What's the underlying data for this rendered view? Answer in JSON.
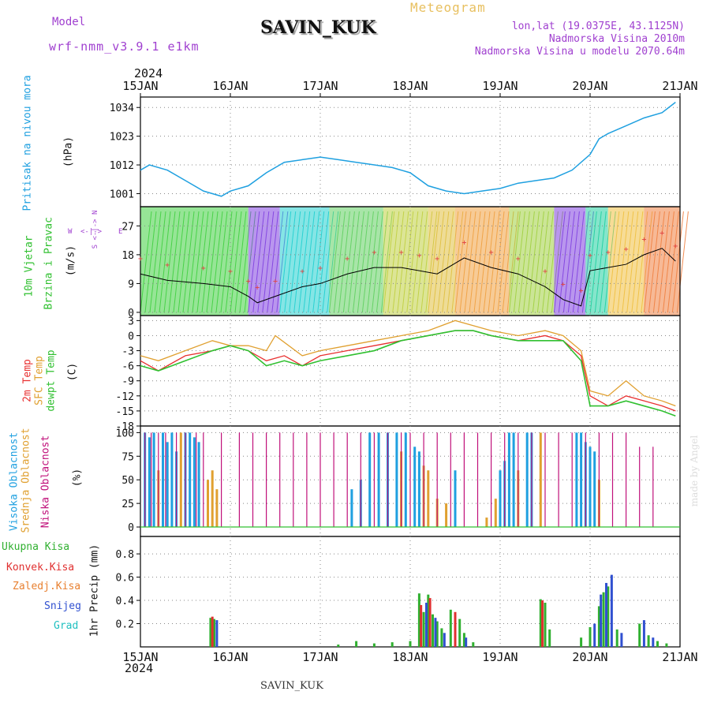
{
  "header": {
    "model_label": "Model",
    "model_name": "wrf-nmm_v3.9.1 e1km",
    "station": "SAVIN_KUK",
    "product": "Meteogram",
    "lonlat": "lon,lat (19.0375E, 43.1125N)",
    "elevation": "Nadmorska Visina 2010m",
    "model_elevation": "Nadmorska Visina u modelu 2070.64m",
    "year": "2024",
    "footer_station": "SAVIN_KUK",
    "credit": "made by Angel"
  },
  "colors": {
    "pressure": "#1fa0e0",
    "temp2m": "#e83030",
    "sfc": "#e0a030",
    "dewpt": "#30c030",
    "high": "#1fa0e0",
    "mid": "#e0a030",
    "low": "#c0107a",
    "total": "#30b030",
    "conv": "#e03030",
    "snow": "#3050d0",
    "grad": "#20c0c0",
    "model": "#a040d0"
  },
  "axis": {
    "dates": [
      "15JAN",
      "16JAN",
      "17JAN",
      "18JAN",
      "19JAN",
      "20JAN",
      "21JAN"
    ]
  },
  "panels": {
    "pressure": {
      "title": "Pritisak na nivou mora",
      "unit": "(hPa)",
      "ticks": [
        "1001",
        "1012",
        "1023",
        "1034"
      ]
    },
    "wind": {
      "title1": "10m Vjetar",
      "title2": "Brzina i Pravac",
      "unit": "(m/s)",
      "ticks": [
        "0",
        "9",
        "18",
        "27"
      ],
      "compass_w": "W",
      "compass_e": "E",
      "compass_arrow": "<-|->",
      "compass_vert": "S <-|-> N"
    },
    "temp": {
      "title1": "2m Temp",
      "title2": "SFC Temp",
      "title3": "dewpt Temp",
      "unit": "(C)",
      "ticks": [
        "-18",
        "-15",
        "-12",
        "-9",
        "-6",
        "-3",
        "0",
        "3"
      ]
    },
    "cloud": {
      "title1": "Visoka Oblacnost",
      "title2": "Srednja Oblacnost",
      "title3": "Niska Oblacnost",
      "unit": "(%)",
      "ticks": [
        "0",
        "25",
        "50",
        "75",
        "100"
      ]
    },
    "precip": {
      "legend": [
        "Ukupna Kisa",
        "Konvek.Kisa",
        "Zaledj.Kisa",
        "Snijeg",
        "Grad"
      ],
      "unit": "1hr Precip (mm)",
      "ticks": [
        "0.2",
        "0.4",
        "0.6",
        "0.8"
      ]
    }
  },
  "chart_data": [
    {
      "type": "line",
      "name": "pressure",
      "x_unit": "day from 15JAN 00UTC",
      "ylim": [
        996,
        1038
      ],
      "series": [
        {
          "name": "Pritisak na nivou mora",
          "x": [
            0,
            0.1,
            0.3,
            0.5,
            0.7,
            0.9,
            1.0,
            1.2,
            1.4,
            1.6,
            1.8,
            2.0,
            2.2,
            2.4,
            2.6,
            2.8,
            3.0,
            3.2,
            3.4,
            3.6,
            3.8,
            4.0,
            4.2,
            4.4,
            4.6,
            4.8,
            5.0,
            5.1,
            5.2,
            5.4,
            5.6,
            5.8,
            5.95
          ],
          "values": [
            1010,
            1012,
            1010,
            1006,
            1002,
            1000,
            1002,
            1004,
            1009,
            1013,
            1014,
            1015,
            1014,
            1013,
            1012,
            1011,
            1009,
            1004,
            1002,
            1001,
            1002,
            1003,
            1005,
            1006,
            1007,
            1010,
            1016,
            1022,
            1024,
            1027,
            1030,
            1032,
            1036
          ]
        }
      ]
    },
    {
      "type": "line",
      "name": "wind",
      "x_unit": "day from 15JAN 00UTC",
      "ylim": [
        -1,
        33
      ],
      "series": [
        {
          "name": "wind speed",
          "x": [
            0,
            0.3,
            0.7,
            1.0,
            1.2,
            1.3,
            1.5,
            1.8,
            2.0,
            2.3,
            2.6,
            2.9,
            3.1,
            3.3,
            3.6,
            3.9,
            4.2,
            4.5,
            4.7,
            4.9,
            5.0,
            5.2,
            5.4,
            5.6,
            5.8,
            5.95
          ],
          "values": [
            12,
            10,
            9,
            8,
            5,
            3,
            5,
            8,
            9,
            12,
            14,
            14,
            13,
            12,
            17,
            14,
            12,
            8,
            4,
            2,
            13,
            14,
            15,
            18,
            20,
            16
          ]
        }
      ]
    },
    {
      "type": "line",
      "name": "temperature",
      "x_unit": "day from 15JAN 00UTC",
      "ylim": [
        -18,
        4
      ],
      "series": [
        {
          "name": "2m Temp",
          "x": [
            0,
            0.2,
            0.5,
            0.8,
            1.0,
            1.2,
            1.4,
            1.6,
            1.8,
            2.0,
            2.3,
            2.6,
            2.9,
            3.2,
            3.5,
            3.7,
            3.9,
            4.2,
            4.5,
            4.7,
            4.9,
            5.0,
            5.2,
            5.4,
            5.6,
            5.8,
            5.95
          ],
          "values": [
            -5,
            -7,
            -4,
            -3,
            -2,
            -3,
            -5,
            -4,
            -6,
            -4,
            -3,
            -2,
            -1,
            0,
            1,
            1,
            0,
            -1,
            0,
            -1,
            -4,
            -12,
            -14,
            -12,
            -13,
            -14,
            -15
          ]
        },
        {
          "name": "SFC Temp",
          "x": [
            0,
            0.2,
            0.5,
            0.8,
            1.0,
            1.2,
            1.4,
            1.5,
            1.8,
            2.0,
            2.3,
            2.6,
            2.9,
            3.2,
            3.5,
            3.7,
            3.9,
            4.2,
            4.5,
            4.7,
            4.9,
            5.0,
            5.2,
            5.4,
            5.6,
            5.8,
            5.95
          ],
          "values": [
            -4,
            -5,
            -3,
            -1,
            -2,
            -2,
            -3,
            0,
            -4,
            -3,
            -2,
            -1,
            0,
            1,
            3,
            2,
            1,
            0,
            1,
            0,
            -3,
            -11,
            -12,
            -9,
            -12,
            -13,
            -14
          ]
        },
        {
          "name": "dewpt Temp",
          "x": [
            0,
            0.2,
            0.5,
            0.8,
            1.0,
            1.2,
            1.4,
            1.6,
            1.8,
            2.0,
            2.3,
            2.6,
            2.9,
            3.2,
            3.5,
            3.7,
            3.9,
            4.2,
            4.5,
            4.7,
            4.9,
            5.0,
            5.2,
            5.4,
            5.6,
            5.8,
            5.95
          ],
          "values": [
            -6,
            -7,
            -5,
            -3,
            -2,
            -3,
            -6,
            -5,
            -6,
            -5,
            -4,
            -3,
            -1,
            0,
            1,
            1,
            0,
            -1,
            -1,
            -1,
            -5,
            -14,
            -14,
            -13,
            -14,
            -15,
            -16
          ]
        }
      ]
    },
    {
      "type": "bar",
      "name": "cloud cover",
      "x_unit": "day from 15JAN 00UTC",
      "ylim": [
        0,
        100
      ],
      "series": [
        {
          "name": "Visoka Oblacnost",
          "x": [
            0.05,
            0.1,
            0.15,
            0.25,
            0.3,
            0.35,
            0.4,
            0.5,
            0.55,
            0.6,
            0.65,
            2.35,
            2.45,
            2.55,
            2.65,
            2.75,
            2.85,
            2.95,
            3.05,
            3.1,
            3.5,
            4.0,
            4.05,
            4.1,
            4.15,
            4.3,
            4.35,
            4.85,
            4.9,
            4.95,
            5.0,
            5.05
          ],
          "values": [
            100,
            95,
            100,
            100,
            90,
            100,
            80,
            100,
            100,
            95,
            90,
            40,
            50,
            100,
            100,
            100,
            100,
            100,
            85,
            80,
            60,
            60,
            70,
            100,
            100,
            100,
            100,
            100,
            100,
            90,
            85,
            80
          ]
        },
        {
          "name": "Srednja Oblacnost",
          "x": [
            0.2,
            0.45,
            0.75,
            0.8,
            0.85,
            2.9,
            3.15,
            3.2,
            3.3,
            3.4,
            3.85,
            3.95,
            4.2,
            4.45,
            5.1
          ],
          "values": [
            60,
            100,
            50,
            60,
            40,
            80,
            65,
            60,
            30,
            25,
            10,
            30,
            60,
            100,
            50
          ]
        },
        {
          "name": "Niska Oblacnost",
          "x": [
            0.05,
            0.12,
            0.2,
            0.28,
            0.4,
            0.5,
            0.62,
            0.7,
            0.9,
            1.1,
            1.25,
            1.4,
            1.55,
            1.7,
            1.85,
            2.0,
            2.15,
            2.3,
            2.45,
            2.6,
            2.75,
            2.9,
            3.0,
            3.15,
            3.3,
            3.45,
            3.6,
            3.75,
            3.9,
            4.05,
            4.2,
            4.35,
            4.5,
            4.65,
            4.8,
            4.95,
            5.1,
            5.25,
            5.4,
            5.55,
            5.7
          ],
          "values": [
            100,
            100,
            100,
            100,
            100,
            100,
            100,
            100,
            100,
            100,
            100,
            100,
            100,
            100,
            100,
            100,
            100,
            100,
            100,
            100,
            100,
            100,
            100,
            100,
            100,
            100,
            100,
            100,
            100,
            100,
            100,
            100,
            100,
            100,
            100,
            100,
            100,
            100,
            100,
            85,
            85
          ]
        }
      ]
    },
    {
      "type": "bar",
      "name": "precipitation",
      "x_unit": "day from 15JAN 00UTC",
      "ylim": [
        0,
        0.95
      ],
      "series": [
        {
          "name": "Ukupna Kisa",
          "x": [
            0.78,
            0.82,
            2.2,
            2.4,
            2.6,
            2.8,
            3.0,
            3.1,
            3.15,
            3.2,
            3.25,
            3.3,
            3.35,
            3.45,
            3.55,
            3.6,
            3.7,
            4.45,
            4.5,
            4.55,
            4.9,
            5.0,
            5.1,
            5.15,
            5.2,
            5.3,
            5.55,
            5.65,
            5.75,
            5.85
          ],
          "values": [
            0.25,
            0.24,
            0.02,
            0.05,
            0.03,
            0.04,
            0.05,
            0.46,
            0.3,
            0.45,
            0.28,
            0.22,
            0.16,
            0.32,
            0.24,
            0.12,
            0.04,
            0.41,
            0.38,
            0.15,
            0.08,
            0.17,
            0.35,
            0.47,
            0.52,
            0.15,
            0.2,
            0.1,
            0.05,
            0.03
          ]
        },
        {
          "name": "Konvek.Kisa",
          "x": [
            0.8,
            3.12,
            3.22,
            3.5,
            4.47
          ],
          "values": [
            0.26,
            0.36,
            0.42,
            0.3,
            0.4
          ]
        },
        {
          "name": "Snijeg",
          "x": [
            0.85,
            3.18,
            3.28,
            3.38,
            3.62,
            5.05,
            5.12,
            5.18,
            5.24,
            5.35,
            5.6,
            5.7
          ],
          "values": [
            0.23,
            0.38,
            0.25,
            0.12,
            0.08,
            0.2,
            0.45,
            0.55,
            0.62,
            0.12,
            0.23,
            0.08
          ]
        }
      ]
    }
  ]
}
